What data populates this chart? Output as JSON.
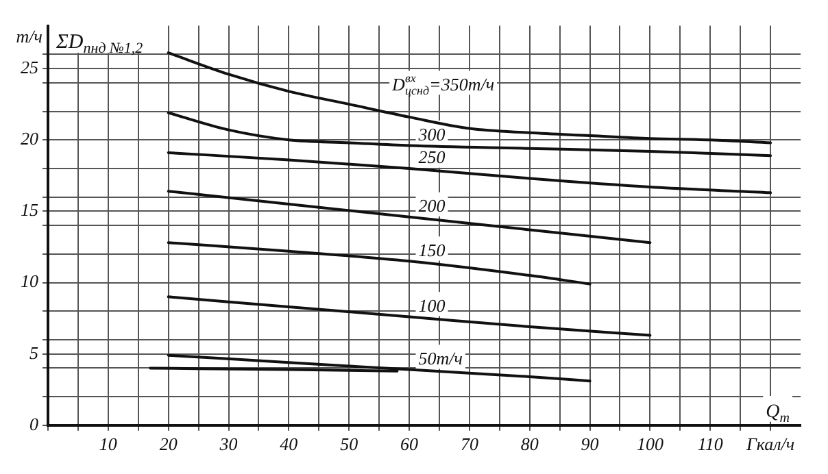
{
  "chart_data": {
    "type": "line",
    "title": "ΣD$_{пнд №1,2}$",
    "ylabel": "т/ч",
    "xlabel": "Q$_{т}$",
    "xlim": [
      0,
      125
    ],
    "ylim": [
      0,
      28
    ],
    "xticks": [
      {
        "value": 0,
        "label": null
      },
      {
        "value": 5,
        "label": null
      },
      10,
      {
        "value": 15,
        "label": null
      },
      20,
      {
        "value": 25,
        "label": null
      },
      30,
      {
        "value": 35,
        "label": null
      },
      40,
      {
        "value": 45,
        "label": null
      },
      50,
      {
        "value": 55,
        "label": null
      },
      60,
      {
        "value": 65,
        "label": null
      },
      70,
      {
        "value": 75,
        "label": null
      },
      80,
      {
        "value": 85,
        "label": null
      },
      90,
      {
        "value": 95,
        "label": null
      },
      100,
      {
        "value": 105,
        "label": null
      },
      110,
      {
        "value": 115,
        "label": null
      },
      {
        "value": 120,
        "label": "Гкал/ч"
      }
    ],
    "yticks": [
      0,
      {
        "value": 2,
        "label": null
      },
      {
        "value": 4,
        "label": null
      },
      5,
      {
        "value": 6,
        "label": null
      },
      {
        "value": 8,
        "label": null
      },
      10,
      {
        "value": 12,
        "label": null
      },
      {
        "value": 14,
        "label": null
      },
      15,
      {
        "value": 16,
        "label": null
      },
      {
        "value": 18,
        "label": null
      },
      20,
      {
        "value": 22,
        "label": null
      },
      {
        "value": 24,
        "label": null
      },
      25,
      {
        "value": 26,
        "label": null
      }
    ],
    "grid": true,
    "legend": false,
    "marker": "none",
    "line_style": "solid",
    "series": [
      {
        "name": "D$^{вх}$$_{цснд}$=350т/ч",
        "color": "#111111",
        "x": [
          20,
          30,
          40,
          50,
          60,
          70,
          80,
          90,
          100,
          110,
          120
        ],
        "values": [
          26.1,
          24.6,
          23.4,
          22.5,
          21.6,
          20.8,
          20.5,
          20.3,
          20.1,
          20.0,
          19.8
        ]
      },
      {
        "name": "300",
        "color": "#111111",
        "x": [
          20,
          30,
          40,
          50,
          60,
          80,
          100,
          120
        ],
        "values": [
          21.9,
          20.7,
          20.0,
          19.8,
          19.6,
          19.4,
          19.2,
          18.9
        ]
      },
      {
        "name": "250",
        "color": "#111111",
        "x": [
          20,
          40,
          60,
          80,
          100,
          120
        ],
        "values": [
          19.1,
          18.6,
          18.0,
          17.3,
          16.7,
          16.3
        ]
      },
      {
        "name": "200",
        "color": "#111111",
        "x": [
          20,
          40,
          60,
          80,
          100
        ],
        "values": [
          16.4,
          15.5,
          14.6,
          13.7,
          12.8
        ]
      },
      {
        "name": "150",
        "color": "#111111",
        "x": [
          20,
          40,
          60,
          80,
          90
        ],
        "values": [
          12.8,
          12.2,
          11.5,
          10.5,
          9.9
        ]
      },
      {
        "name": "100",
        "color": "#111111",
        "x": [
          20,
          40,
          60,
          80,
          100
        ],
        "values": [
          9.0,
          8.3,
          7.6,
          6.9,
          6.3
        ]
      },
      {
        "name": "50т/ч",
        "color": "#111111",
        "x": [
          20,
          40,
          60,
          80,
          90
        ],
        "values": [
          4.9,
          4.4,
          3.9,
          3.4,
          3.1
        ]
      },
      {
        "color": "#111111",
        "x": [
          17,
          40,
          58
        ],
        "values": [
          4.0,
          3.9,
          3.8
        ]
      }
    ]
  }
}
